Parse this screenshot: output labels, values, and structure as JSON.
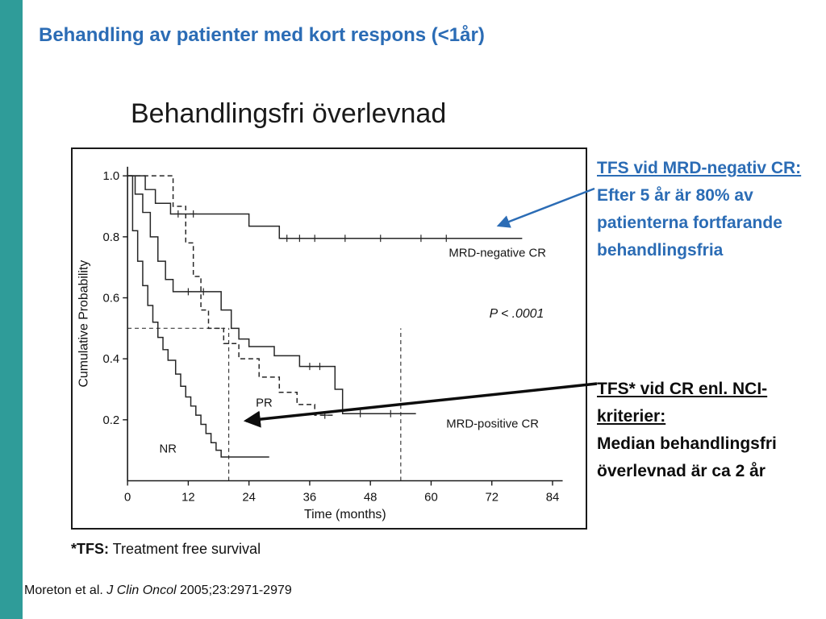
{
  "slide": {
    "heading": "Behandling av patienter med kort respons (<1år)",
    "title": "Behandlingsfri överlevnad",
    "footnote": {
      "bold": "*TFS:",
      "rest": " Treatment free survival"
    },
    "citation": {
      "prefix": "Moreton et al. ",
      "italic": "J Clin Oncol",
      "rest": " 2005;23:2971-2979"
    }
  },
  "notes": {
    "mrd_note": {
      "title": "TFS vid MRD-negativ CR:",
      "line1": "Efter 5 år är 80% av",
      "line2": "patienterna fortfarande",
      "line3": "behandlingsfria"
    },
    "nci_note": {
      "title1": "TFS* vid CR enl. NCI-",
      "title2": "kriterier:",
      "line1": "Median behandlingsfri",
      "line2": "överlevnad är ca 2 år"
    }
  },
  "colors": {
    "accent_teal": "#2F9C99",
    "heading_blue": "#2B6CB5",
    "curve_black": "#262626"
  },
  "chart_data": {
    "type": "line",
    "subtype": "kaplan-meier-step",
    "xlabel": "Time (months)",
    "ylabel": "Cumulative Probability",
    "xlim": [
      0,
      86
    ],
    "ylim": [
      0,
      1.03
    ],
    "xticks": [
      0,
      12,
      24,
      36,
      48,
      60,
      72,
      84
    ],
    "yticks": [
      1.0,
      0.8,
      0.6,
      0.4,
      0.2
    ],
    "grid": false,
    "annotations": [
      {
        "text": "P < .0001",
        "x": 71.5,
        "y": 0.535,
        "anchor": "start",
        "italic": true
      }
    ],
    "ref_lines": [
      {
        "x1": 0,
        "y1": 0.5,
        "x2": 20,
        "y2": 0.5
      },
      {
        "x1": 20,
        "y1": 0,
        "x2": 20,
        "y2": 0.5
      },
      {
        "x1": 54,
        "y1": 0,
        "x2": 54,
        "y2": 0.5
      }
    ],
    "series": [
      {
        "name": "MRD-negative CR",
        "label": "MRD-negative CR",
        "label_x": 63.5,
        "label_y": 0.735,
        "label_anchor": "start",
        "dashed": false,
        "points": [
          [
            0,
            1.0
          ],
          [
            3.5,
            1.0
          ],
          [
            3.5,
            0.955
          ],
          [
            5.5,
            0.955
          ],
          [
            5.5,
            0.91
          ],
          [
            8.5,
            0.91
          ],
          [
            8.5,
            0.875
          ],
          [
            24,
            0.875
          ],
          [
            24,
            0.835
          ],
          [
            30,
            0.835
          ],
          [
            30,
            0.795
          ],
          [
            78,
            0.795
          ]
        ],
        "censors": [
          [
            10,
            0.875
          ],
          [
            13,
            0.875
          ],
          [
            31.5,
            0.795
          ],
          [
            34,
            0.795
          ],
          [
            37,
            0.795
          ],
          [
            43,
            0.795
          ],
          [
            50,
            0.795
          ],
          [
            58,
            0.795
          ],
          [
            63,
            0.795
          ]
        ]
      },
      {
        "name": "PR",
        "label": "PR",
        "label_x": 27,
        "label_y": 0.243,
        "label_anchor": "middle",
        "dashed": true,
        "points": [
          [
            0,
            1.0
          ],
          [
            9,
            1.0
          ],
          [
            9,
            0.9
          ],
          [
            11.5,
            0.9
          ],
          [
            11.5,
            0.78
          ],
          [
            13,
            0.78
          ],
          [
            13,
            0.67
          ],
          [
            14.5,
            0.67
          ],
          [
            14.5,
            0.56
          ],
          [
            16,
            0.56
          ],
          [
            16,
            0.5
          ],
          [
            19,
            0.5
          ],
          [
            19,
            0.45
          ],
          [
            22,
            0.45
          ],
          [
            22,
            0.4
          ],
          [
            26,
            0.4
          ],
          [
            26,
            0.34
          ],
          [
            30,
            0.34
          ],
          [
            30,
            0.29
          ],
          [
            33.5,
            0.29
          ],
          [
            33.5,
            0.25
          ],
          [
            37,
            0.25
          ],
          [
            37,
            0.215
          ],
          [
            41,
            0.215
          ]
        ],
        "censors": [
          [
            39,
            0.215
          ]
        ]
      },
      {
        "name": "MRD-positive CR",
        "label": "MRD-positive CR",
        "label_x": 63,
        "label_y": 0.175,
        "label_anchor": "start",
        "dashed": false,
        "points": [
          [
            0,
            1.0
          ],
          [
            1.5,
            1.0
          ],
          [
            1.5,
            0.94
          ],
          [
            3,
            0.94
          ],
          [
            3,
            0.88
          ],
          [
            4.5,
            0.88
          ],
          [
            4.5,
            0.8
          ],
          [
            6,
            0.8
          ],
          [
            6,
            0.72
          ],
          [
            7.5,
            0.72
          ],
          [
            7.5,
            0.66
          ],
          [
            9,
            0.66
          ],
          [
            9,
            0.62
          ],
          [
            18.5,
            0.62
          ],
          [
            18.5,
            0.56
          ],
          [
            20.5,
            0.56
          ],
          [
            20.5,
            0.5
          ],
          [
            22,
            0.5
          ],
          [
            22,
            0.465
          ],
          [
            24,
            0.465
          ],
          [
            24,
            0.44
          ],
          [
            29,
            0.44
          ],
          [
            29,
            0.41
          ],
          [
            34,
            0.41
          ],
          [
            34,
            0.375
          ],
          [
            41,
            0.375
          ],
          [
            41,
            0.3
          ],
          [
            42.5,
            0.3
          ],
          [
            42.5,
            0.22
          ],
          [
            57,
            0.22
          ]
        ],
        "censors": [
          [
            12,
            0.62
          ],
          [
            15,
            0.62
          ],
          [
            36,
            0.375
          ],
          [
            38,
            0.375
          ],
          [
            46,
            0.22
          ],
          [
            52,
            0.22
          ]
        ]
      },
      {
        "name": "NR",
        "label": "NR",
        "label_x": 8,
        "label_y": 0.092,
        "label_anchor": "middle",
        "dashed": false,
        "points": [
          [
            0,
            1.0
          ],
          [
            1,
            1.0
          ],
          [
            1,
            0.82
          ],
          [
            2,
            0.82
          ],
          [
            2,
            0.72
          ],
          [
            3,
            0.72
          ],
          [
            3,
            0.64
          ],
          [
            4,
            0.64
          ],
          [
            4,
            0.575
          ],
          [
            5,
            0.575
          ],
          [
            5,
            0.52
          ],
          [
            6,
            0.52
          ],
          [
            6,
            0.47
          ],
          [
            7,
            0.47
          ],
          [
            7,
            0.43
          ],
          [
            8,
            0.43
          ],
          [
            8,
            0.395
          ],
          [
            9.5,
            0.395
          ],
          [
            9.5,
            0.35
          ],
          [
            10.5,
            0.35
          ],
          [
            10.5,
            0.31
          ],
          [
            11.5,
            0.31
          ],
          [
            11.5,
            0.275
          ],
          [
            12.5,
            0.275
          ],
          [
            12.5,
            0.245
          ],
          [
            13.5,
            0.245
          ],
          [
            13.5,
            0.215
          ],
          [
            14.5,
            0.215
          ],
          [
            14.5,
            0.185
          ],
          [
            15.5,
            0.185
          ],
          [
            15.5,
            0.155
          ],
          [
            16.5,
            0.155
          ],
          [
            16.5,
            0.125
          ],
          [
            17.5,
            0.125
          ],
          [
            17.5,
            0.1
          ],
          [
            18.5,
            0.1
          ],
          [
            18.5,
            0.078
          ],
          [
            28,
            0.078
          ]
        ],
        "censors": []
      }
    ]
  }
}
